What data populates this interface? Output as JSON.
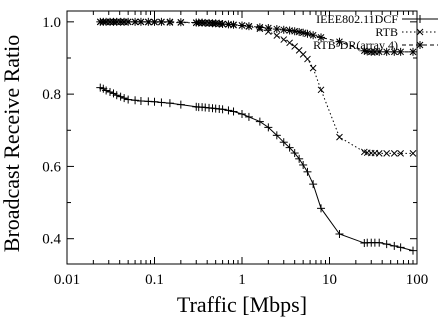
{
  "chart_data": {
    "type": "line",
    "xlabel": "Traffic [Mbps]",
    "ylabel": "Broadcast Receive Ratio",
    "xscale": "log",
    "xlim": [
      0.01,
      100
    ],
    "ylim": [
      0.33,
      1.03
    ],
    "xticks": [
      0.01,
      0.1,
      1,
      10,
      100
    ],
    "xtick_labels": [
      "0.01",
      "0.1",
      "1",
      "10",
      "100"
    ],
    "yticks": [
      0.4,
      0.6,
      0.8,
      1.0
    ],
    "ytick_labels": [
      "0.4",
      "0.6",
      "0.8",
      "1.0"
    ],
    "grid": false,
    "legend_position": "top-right",
    "series": [
      {
        "name": "IEEE802.11DCF",
        "marker": "plus",
        "line": "solid",
        "x": [
          0.024,
          0.026,
          0.028,
          0.031,
          0.034,
          0.037,
          0.041,
          0.045,
          0.05,
          0.06,
          0.07,
          0.085,
          0.1,
          0.12,
          0.15,
          0.2,
          0.3,
          0.32,
          0.35,
          0.38,
          0.42,
          0.46,
          0.5,
          0.55,
          0.6,
          0.7,
          0.8,
          1.0,
          1.2,
          1.6,
          2.0,
          2.5,
          3.0,
          3.5,
          4.0,
          4.5,
          5.0,
          5.6,
          6.5,
          8.0,
          13,
          25,
          27,
          30,
          33,
          37,
          45,
          55,
          65,
          90
        ],
        "y": [
          0.818,
          0.815,
          0.81,
          0.806,
          0.802,
          0.797,
          0.793,
          0.789,
          0.785,
          0.783,
          0.781,
          0.78,
          0.779,
          0.777,
          0.775,
          0.771,
          0.765,
          0.764,
          0.764,
          0.763,
          0.762,
          0.761,
          0.76,
          0.759,
          0.758,
          0.755,
          0.752,
          0.745,
          0.737,
          0.724,
          0.708,
          0.686,
          0.667,
          0.652,
          0.637,
          0.621,
          0.604,
          0.585,
          0.551,
          0.484,
          0.413,
          0.388,
          0.389,
          0.389,
          0.389,
          0.389,
          0.385,
          0.38,
          0.376,
          0.367
        ]
      },
      {
        "name": "RTB",
        "marker": "x",
        "line": "dotted",
        "x": [
          0.024,
          0.026,
          0.028,
          0.031,
          0.034,
          0.037,
          0.041,
          0.045,
          0.05,
          0.06,
          0.07,
          0.085,
          0.1,
          0.12,
          0.15,
          0.2,
          0.3,
          0.32,
          0.35,
          0.38,
          0.42,
          0.46,
          0.5,
          0.55,
          0.6,
          0.7,
          0.8,
          1.0,
          1.2,
          1.6,
          2.0,
          2.5,
          3.0,
          3.5,
          4.0,
          4.5,
          5.0,
          5.6,
          6.5,
          8.0,
          13,
          25,
          27,
          30,
          33,
          37,
          45,
          55,
          65,
          90
        ],
        "y": [
          1.0,
          1.0,
          1.0,
          1.0,
          1.0,
          1.0,
          1.0,
          1.0,
          1.0,
          1.0,
          1.0,
          0.999,
          0.999,
          0.999,
          0.998,
          0.998,
          0.997,
          0.997,
          0.997,
          0.997,
          0.996,
          0.996,
          0.995,
          0.995,
          0.994,
          0.993,
          0.991,
          0.99,
          0.987,
          0.981,
          0.973,
          0.962,
          0.951,
          0.942,
          0.932,
          0.921,
          0.91,
          0.897,
          0.872,
          0.812,
          0.681,
          0.64,
          0.638,
          0.637,
          0.637,
          0.636,
          0.636,
          0.636,
          0.636,
          0.636
        ]
      },
      {
        "name": "RTB-DR(array 4)",
        "marker": "star",
        "line": "dashed",
        "x": [
          0.024,
          0.026,
          0.028,
          0.031,
          0.034,
          0.037,
          0.041,
          0.045,
          0.05,
          0.06,
          0.07,
          0.085,
          0.1,
          0.12,
          0.15,
          0.2,
          0.3,
          0.32,
          0.35,
          0.38,
          0.42,
          0.46,
          0.5,
          0.55,
          0.6,
          0.7,
          0.8,
          1.0,
          1.2,
          1.6,
          2.0,
          2.5,
          3.0,
          3.5,
          4.0,
          4.5,
          5.0,
          5.6,
          6.5,
          8.0,
          13,
          25,
          27,
          30,
          33,
          37,
          45,
          55,
          65,
          90
        ],
        "y": [
          1.0,
          1.0,
          1.0,
          1.0,
          1.0,
          1.0,
          1.0,
          1.0,
          1.0,
          1.0,
          1.0,
          1.0,
          1.0,
          1.0,
          1.0,
          0.999,
          0.998,
          0.998,
          0.998,
          0.997,
          0.997,
          0.996,
          0.996,
          0.995,
          0.994,
          0.993,
          0.992,
          0.99,
          0.988,
          0.985,
          0.983,
          0.98,
          0.978,
          0.976,
          0.974,
          0.972,
          0.97,
          0.967,
          0.963,
          0.957,
          0.945,
          0.92,
          0.918,
          0.917,
          0.917,
          0.917,
          0.917,
          0.917,
          0.917,
          0.917
        ]
      }
    ]
  }
}
